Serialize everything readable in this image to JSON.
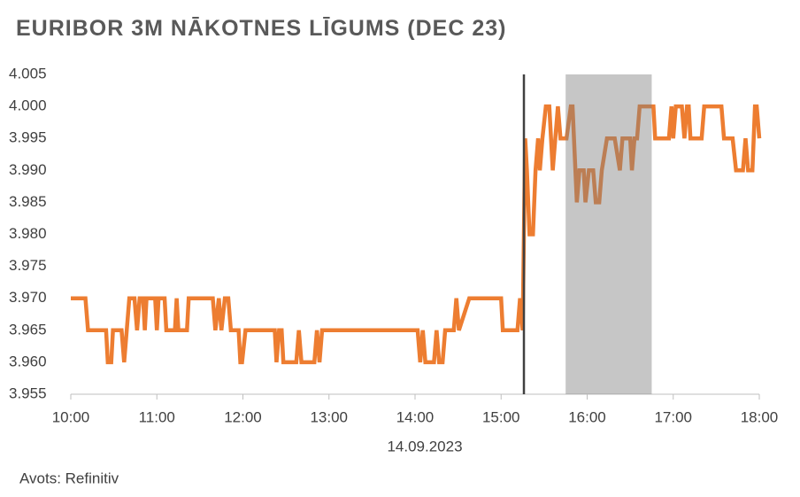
{
  "chart_data": {
    "type": "line",
    "title": "EURIBOR 3M NĀKOTNES LĪGUMS (DEC 23)",
    "xlabel": "14.09.2023",
    "source": "Avots: Refinitiv",
    "color": "#ED7D31",
    "marker_line": 15.265,
    "marker_line_color": "#404040",
    "shaded_range": [
      15.75,
      16.75
    ],
    "shade_color": "#808080",
    "xlim": [
      10,
      18
    ],
    "xticks": [
      {
        "value": 10,
        "label": "10:00"
      },
      {
        "value": 11,
        "label": "11:00"
      },
      {
        "value": 12,
        "label": "12:00"
      },
      {
        "value": 13,
        "label": "13:00"
      },
      {
        "value": 14,
        "label": "14:00"
      },
      {
        "value": 15,
        "label": "15:00"
      },
      {
        "value": 16,
        "label": "16:00"
      },
      {
        "value": 17,
        "label": "17:00"
      },
      {
        "value": 18,
        "label": "18:00"
      }
    ],
    "ylim": [
      3.955,
      4.005
    ],
    "yticks": [
      {
        "value": 3.955,
        "label": "3.955"
      },
      {
        "value": 3.96,
        "label": "3.960"
      },
      {
        "value": 3.965,
        "label": "3.965"
      },
      {
        "value": 3.97,
        "label": "3.970"
      },
      {
        "value": 3.975,
        "label": "3.975"
      },
      {
        "value": 3.98,
        "label": "3.980"
      },
      {
        "value": 3.985,
        "label": "3.985"
      },
      {
        "value": 3.99,
        "label": "3.990"
      },
      {
        "value": 3.995,
        "label": "3.995"
      },
      {
        "value": 4,
        "label": "4.000"
      },
      {
        "value": 4.005,
        "label": "4.005"
      }
    ],
    "x": [
      10.0,
      10.17,
      10.2,
      10.41,
      10.43,
      10.47,
      10.49,
      10.59,
      10.62,
      10.65,
      10.68,
      10.74,
      10.77,
      10.8,
      10.84,
      10.86,
      10.88,
      10.98,
      11.0,
      11.02,
      11.09,
      11.11,
      11.21,
      11.23,
      11.25,
      11.35,
      11.37,
      11.65,
      11.68,
      11.72,
      11.75,
      11.79,
      11.83,
      11.86,
      11.95,
      11.97,
      11.99,
      12.03,
      12.37,
      12.39,
      12.42,
      12.45,
      12.47,
      12.62,
      12.65,
      12.68,
      12.83,
      12.86,
      12.89,
      12.92,
      14.03,
      14.06,
      14.09,
      14.12,
      14.22,
      14.25,
      14.28,
      14.32,
      14.35,
      14.45,
      14.48,
      14.51,
      14.63,
      15.0,
      15.02,
      15.19,
      15.22,
      15.25,
      15.28,
      15.3,
      15.33,
      15.37,
      15.4,
      15.43,
      15.45,
      15.48,
      15.52,
      15.56,
      15.6,
      15.66,
      15.69,
      15.76,
      15.81,
      15.83,
      15.88,
      15.91,
      15.96,
      15.98,
      16.02,
      16.07,
      16.1,
      16.14,
      16.17,
      16.23,
      16.32,
      16.38,
      16.41,
      16.5,
      16.52,
      16.55,
      16.58,
      16.61,
      16.77,
      16.79,
      16.95,
      16.98,
      17.0,
      17.03,
      17.1,
      17.13,
      17.16,
      17.18,
      17.2,
      17.33,
      17.36,
      17.56,
      17.59,
      17.69,
      17.73,
      17.81,
      17.84,
      17.87,
      17.92,
      17.95,
      17.97,
      18.0
    ],
    "values": [
      3.97,
      3.97,
      3.965,
      3.965,
      3.96,
      3.96,
      3.965,
      3.965,
      3.96,
      3.965,
      3.97,
      3.97,
      3.965,
      3.97,
      3.97,
      3.965,
      3.97,
      3.97,
      3.965,
      3.97,
      3.97,
      3.965,
      3.965,
      3.97,
      3.965,
      3.965,
      3.97,
      3.97,
      3.965,
      3.97,
      3.965,
      3.97,
      3.97,
      3.965,
      3.965,
      3.96,
      3.96,
      3.965,
      3.965,
      3.96,
      3.965,
      3.965,
      3.96,
      3.96,
      3.965,
      3.96,
      3.96,
      3.965,
      3.96,
      3.965,
      3.965,
      3.96,
      3.965,
      3.96,
      3.96,
      3.965,
      3.96,
      3.96,
      3.965,
      3.965,
      3.97,
      3.965,
      3.97,
      3.97,
      3.965,
      3.965,
      3.97,
      3.965,
      3.995,
      3.99,
      3.98,
      3.98,
      3.99,
      3.995,
      3.99,
      3.995,
      4.0,
      4.0,
      3.99,
      4.0,
      3.995,
      3.995,
      4.0,
      4.0,
      3.985,
      3.99,
      3.99,
      3.985,
      3.99,
      3.99,
      3.985,
      3.985,
      3.99,
      3.995,
      3.995,
      3.99,
      3.995,
      3.995,
      3.99,
      3.995,
      3.995,
      4.0,
      4.0,
      3.995,
      3.995,
      4.0,
      3.995,
      4.0,
      4.0,
      3.995,
      4.0,
      4.0,
      3.995,
      3.995,
      4.0,
      4.0,
      3.995,
      3.995,
      3.99,
      3.99,
      3.995,
      3.99,
      3.99,
      4.0,
      4.0,
      3.995
    ]
  }
}
